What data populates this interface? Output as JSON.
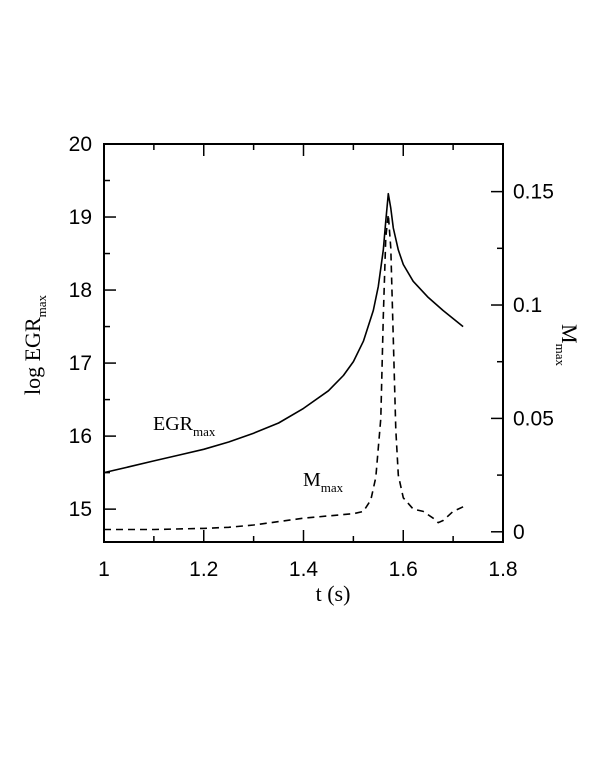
{
  "chart_data": {
    "type": "line",
    "xlabel": "t  (s)",
    "ylabel_left": {
      "main": "log  EGR",
      "sub": "max"
    },
    "ylabel_right": {
      "main": "M",
      "sub": "max"
    },
    "xlim": [
      1.0,
      1.8
    ],
    "ylim_left": [
      14.55,
      20
    ],
    "ylim_right": [
      -0.0045,
      0.171
    ],
    "x_ticks": [
      1.0,
      1.2,
      1.4,
      1.6,
      1.8
    ],
    "x_tick_labels": [
      "1",
      "1.2",
      "1.4",
      "1.6",
      "1.8"
    ],
    "y_left_ticks": [
      15,
      16,
      17,
      18,
      19,
      20
    ],
    "y_left_tick_labels": [
      "15",
      "16",
      "17",
      "18",
      "19",
      "20"
    ],
    "y_right_ticks": [
      0,
      0.05,
      0.1,
      0.15
    ],
    "y_right_tick_labels": [
      "0",
      "0.05",
      "0.1",
      "0.15"
    ],
    "annotations": [
      {
        "main": "EGR",
        "sub": "max"
      },
      {
        "main": "M",
        "sub": "max"
      }
    ],
    "series": [
      {
        "axis": "left",
        "style": "solid",
        "x": [
          1.0,
          1.05,
          1.1,
          1.15,
          1.2,
          1.25,
          1.3,
          1.35,
          1.4,
          1.45,
          1.48,
          1.5,
          1.52,
          1.54,
          1.55,
          1.56,
          1.565,
          1.57,
          1.575,
          1.58,
          1.59,
          1.6,
          1.62,
          1.65,
          1.68,
          1.72
        ],
        "values": [
          15.5,
          15.58,
          15.66,
          15.74,
          15.82,
          15.92,
          16.04,
          16.18,
          16.38,
          16.62,
          16.83,
          17.02,
          17.3,
          17.72,
          18.05,
          18.55,
          18.95,
          19.32,
          19.12,
          18.85,
          18.55,
          18.35,
          18.12,
          17.9,
          17.72,
          17.5
        ]
      },
      {
        "axis": "right",
        "style": "dashed",
        "x": [
          1.0,
          1.1,
          1.2,
          1.25,
          1.3,
          1.35,
          1.4,
          1.45,
          1.5,
          1.52,
          1.535,
          1.545,
          1.555,
          1.56,
          1.565,
          1.57,
          1.575,
          1.58,
          1.585,
          1.59,
          1.6,
          1.62,
          1.64,
          1.66,
          1.67,
          1.68,
          1.7,
          1.72
        ],
        "values": [
          0.001,
          0.001,
          0.0015,
          0.002,
          0.003,
          0.0045,
          0.006,
          0.007,
          0.008,
          0.009,
          0.014,
          0.024,
          0.05,
          0.095,
          0.13,
          0.14,
          0.125,
          0.085,
          0.045,
          0.025,
          0.015,
          0.01,
          0.009,
          0.006,
          0.004,
          0.005,
          0.009,
          0.011
        ]
      }
    ]
  }
}
